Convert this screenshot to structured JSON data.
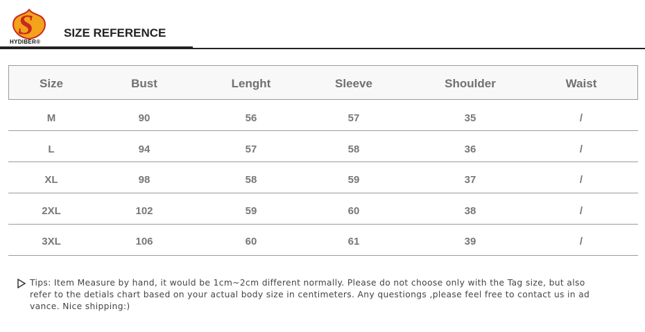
{
  "logo": {
    "mark": "S",
    "brand": "HYDIBER®"
  },
  "header": {
    "title": "SIZE REFERENCE"
  },
  "table": {
    "columns": [
      "Size",
      "Bust",
      "Lenght",
      "Sleeve",
      "Shoulder",
      "Waist"
    ],
    "rows": [
      [
        "M",
        "90",
        "56",
        "57",
        "35",
        "/"
      ],
      [
        "L",
        "94",
        "57",
        "58",
        "36",
        "/"
      ],
      [
        "XL",
        "98",
        "58",
        "59",
        "37",
        "/"
      ],
      [
        "2XL",
        "102",
        "59",
        "60",
        "38",
        "/"
      ],
      [
        "3XL",
        "106",
        "60",
        "61",
        "39",
        "/"
      ]
    ]
  },
  "tips": {
    "lines": [
      "Tips: Item Measure by hand, it would be 1cm~2cm different normally. Please do not choose only with the Tag size, but also",
      "refer to the detials chart based on your actual body size in centimeters. Any questiongs ,please feel free to contact us in ad",
      "vance. Nice shipping:)"
    ]
  }
}
